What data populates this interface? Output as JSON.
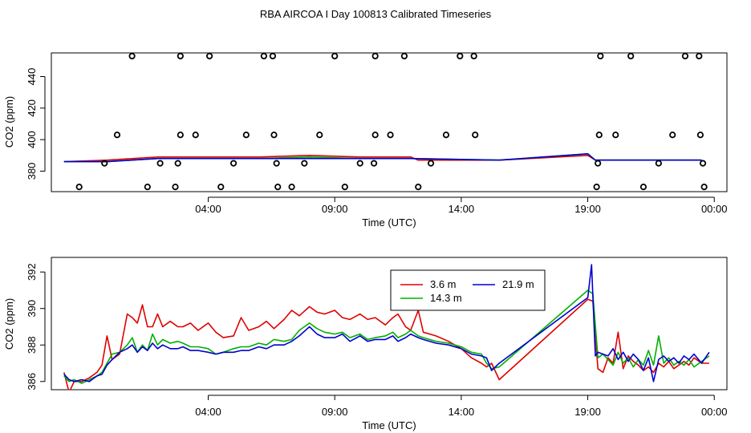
{
  "title": "RBA AIRCOA I  Day 100813  Calibrated Timeseries",
  "chart_data": [
    {
      "type": "line",
      "xlabel": "Time (UTC)",
      "ylabel": "CO2 (ppm)",
      "x_unit": "hours since 00:00 UTC",
      "xlim": [
        -2.2,
        24.5
      ],
      "ylim": [
        367,
        455
      ],
      "x_ticks": [
        {
          "x": 4,
          "label": "04:00"
        },
        {
          "x": 9,
          "label": "09:00"
        },
        {
          "x": 14,
          "label": "14:00"
        },
        {
          "x": 19,
          "label": "19:00"
        },
        {
          "x": 24,
          "label": "00:00"
        }
      ],
      "y_ticks": [
        380,
        400,
        420,
        440
      ],
      "scatter_points": [
        {
          "x": -1.1,
          "y": 370
        },
        {
          "x": -0.1,
          "y": 385
        },
        {
          "x": 0.4,
          "y": 403
        },
        {
          "x": 0.99,
          "y": 453
        },
        {
          "x": 1.6,
          "y": 370
        },
        {
          "x": 2.1,
          "y": 385
        },
        {
          "x": 2.7,
          "y": 370
        },
        {
          "x": 2.8,
          "y": 385
        },
        {
          "x": 2.9,
          "y": 403
        },
        {
          "x": 2.9,
          "y": 453
        },
        {
          "x": 3.5,
          "y": 403
        },
        {
          "x": 4.05,
          "y": 453
        },
        {
          "x": 4.5,
          "y": 370
        },
        {
          "x": 5.0,
          "y": 385
        },
        {
          "x": 5.5,
          "y": 403
        },
        {
          "x": 6.2,
          "y": 453
        },
        {
          "x": 6.55,
          "y": 453
        },
        {
          "x": 6.6,
          "y": 403
        },
        {
          "x": 6.7,
          "y": 385
        },
        {
          "x": 6.75,
          "y": 370
        },
        {
          "x": 7.3,
          "y": 370
        },
        {
          "x": 7.8,
          "y": 385
        },
        {
          "x": 8.4,
          "y": 403
        },
        {
          "x": 9.0,
          "y": 453
        },
        {
          "x": 9.4,
          "y": 370
        },
        {
          "x": 10.0,
          "y": 385
        },
        {
          "x": 10.55,
          "y": 385
        },
        {
          "x": 10.6,
          "y": 403
        },
        {
          "x": 10.6,
          "y": 453
        },
        {
          "x": 11.2,
          "y": 403
        },
        {
          "x": 11.75,
          "y": 453
        },
        {
          "x": 12.3,
          "y": 370
        },
        {
          "x": 12.8,
          "y": 385
        },
        {
          "x": 13.4,
          "y": 403
        },
        {
          "x": 13.95,
          "y": 453
        },
        {
          "x": 14.5,
          "y": 453
        },
        {
          "x": 14.55,
          "y": 403
        },
        {
          "x": 19.35,
          "y": 370
        },
        {
          "x": 19.4,
          "y": 385
        },
        {
          "x": 19.45,
          "y": 403
        },
        {
          "x": 19.5,
          "y": 453
        },
        {
          "x": 20.1,
          "y": 403
        },
        {
          "x": 20.7,
          "y": 453
        },
        {
          "x": 21.2,
          "y": 370
        },
        {
          "x": 21.8,
          "y": 385
        },
        {
          "x": 22.35,
          "y": 403
        },
        {
          "x": 22.85,
          "y": 453
        },
        {
          "x": 23.4,
          "y": 453
        },
        {
          "x": 23.45,
          "y": 403
        },
        {
          "x": 23.55,
          "y": 385
        },
        {
          "x": 23.6,
          "y": 370
        }
      ],
      "series": [
        {
          "name": "3.6 m",
          "color": "#e00000",
          "x": [
            -1.7,
            0.0,
            2.0,
            4.0,
            6.0,
            8.0,
            10.0,
            12.0,
            12.3,
            15.5,
            19.0,
            19.3,
            19.5,
            23.5
          ],
          "y": [
            386,
            387,
            389,
            389,
            389,
            390,
            389,
            389,
            387,
            387,
            390,
            387,
            387,
            387
          ]
        },
        {
          "name": "14.3 m",
          "color": "#00b000",
          "x": [
            -1.7,
            0.0,
            2.0,
            4.0,
            6.0,
            8.0,
            10.0,
            12.0,
            15.5,
            19.0,
            19.3,
            19.5,
            23.5
          ],
          "y": [
            386,
            386,
            388,
            388,
            388,
            389,
            388,
            388,
            387,
            391,
            387,
            387,
            387
          ]
        },
        {
          "name": "21.9 m",
          "color": "#0000d0",
          "x": [
            -1.7,
            0.0,
            2.0,
            4.0,
            6.0,
            8.0,
            10.0,
            12.0,
            15.5,
            19.0,
            19.3,
            19.5,
            23.5
          ],
          "y": [
            386,
            386,
            388,
            388,
            388,
            388,
            388,
            388,
            387,
            391,
            387,
            387,
            387
          ]
        }
      ]
    },
    {
      "type": "line",
      "xlabel": "Time (UTC)",
      "ylabel": "CO2 (ppm)",
      "x_unit": "hours since 00:00 UTC",
      "xlim": [
        -2.2,
        24.5
      ],
      "ylim": [
        385.55,
        392.8
      ],
      "x_ticks": [
        {
          "x": 4,
          "label": "04:00"
        },
        {
          "x": 9,
          "label": "09:00"
        },
        {
          "x": 14,
          "label": "14:00"
        },
        {
          "x": 19,
          "label": "19:00"
        },
        {
          "x": 24,
          "label": "00:00"
        }
      ],
      "y_ticks": [
        386,
        388,
        390,
        392
      ],
      "legend": {
        "position": "top-center"
      },
      "series": [
        {
          "name": "3.6 m",
          "color": "#e00000",
          "x": [
            -1.7,
            -1.5,
            -1.3,
            -1.0,
            -0.7,
            -0.4,
            -0.2,
            0.0,
            0.2,
            0.5,
            0.8,
            1.0,
            1.2,
            1.4,
            1.6,
            1.8,
            2.0,
            2.2,
            2.5,
            2.8,
            3.0,
            3.3,
            3.6,
            4.0,
            4.3,
            4.6,
            5.0,
            5.3,
            5.6,
            6.0,
            6.3,
            6.6,
            7.0,
            7.3,
            7.6,
            8.0,
            8.3,
            8.6,
            9.0,
            9.3,
            9.6,
            10.0,
            10.3,
            10.6,
            11.0,
            11.3,
            11.5,
            11.8,
            12.0,
            12.3,
            12.5,
            13.0,
            13.5,
            14.0,
            14.4,
            14.8,
            15.0,
            15.2,
            15.5,
            19.0,
            19.2,
            19.4,
            19.6,
            19.8,
            20.0,
            20.2,
            20.4,
            20.6,
            20.8,
            21.0,
            21.2,
            21.4,
            21.6,
            21.8,
            22.0,
            22.2,
            22.4,
            22.6,
            22.8,
            23.0,
            23.2,
            23.5,
            23.8
          ],
          "y": [
            386.5,
            385.4,
            386.0,
            386.0,
            386.2,
            386.5,
            386.9,
            388.5,
            387.2,
            387.5,
            389.7,
            389.5,
            389.2,
            390.2,
            389.0,
            389.0,
            389.7,
            389.0,
            389.3,
            389.0,
            389.0,
            389.2,
            388.8,
            389.2,
            388.7,
            388.4,
            388.5,
            389.5,
            388.8,
            389.0,
            389.3,
            388.9,
            389.4,
            389.9,
            389.6,
            390.1,
            389.8,
            389.7,
            389.9,
            389.5,
            389.4,
            389.7,
            389.4,
            389.5,
            389.1,
            389.5,
            389.7,
            389.0,
            388.8,
            389.9,
            388.7,
            388.5,
            388.2,
            387.8,
            387.3,
            387.0,
            386.8,
            387.0,
            386.1,
            390.5,
            390.4,
            386.7,
            386.5,
            387.3,
            387.0,
            388.7,
            386.7,
            387.4,
            387.1,
            386.9,
            386.6,
            386.8,
            386.5,
            387.0,
            386.8,
            387.1,
            386.7,
            386.9,
            387.1,
            386.9,
            387.3,
            387.0,
            387.0
          ]
        },
        {
          "name": "14.3 m",
          "color": "#00b000",
          "x": [
            -1.7,
            -1.5,
            -1.3,
            -1.0,
            -0.7,
            -0.4,
            -0.2,
            0.0,
            0.2,
            0.5,
            0.8,
            1.0,
            1.2,
            1.4,
            1.6,
            1.8,
            2.0,
            2.2,
            2.5,
            2.8,
            3.0,
            3.3,
            3.6,
            4.0,
            4.3,
            4.6,
            5.0,
            5.3,
            5.6,
            6.0,
            6.3,
            6.6,
            7.0,
            7.3,
            7.6,
            8.0,
            8.3,
            8.6,
            9.0,
            9.3,
            9.6,
            10.0,
            10.3,
            10.6,
            11.0,
            11.3,
            11.5,
            11.8,
            12.0,
            12.3,
            12.5,
            13.0,
            13.5,
            14.0,
            14.4,
            14.8,
            15.0,
            15.2,
            15.5,
            19.0,
            19.2,
            19.4,
            19.6,
            19.8,
            20.0,
            20.2,
            20.4,
            20.6,
            20.8,
            21.0,
            21.2,
            21.4,
            21.6,
            21.8,
            22.0,
            22.2,
            22.4,
            22.6,
            22.8,
            23.0,
            23.2,
            23.5,
            23.8
          ],
          "y": [
            386.3,
            386.0,
            386.1,
            385.9,
            386.1,
            386.3,
            386.5,
            387.0,
            387.5,
            387.6,
            388.0,
            388.4,
            387.6,
            388.0,
            387.7,
            388.6,
            388.0,
            388.3,
            388.1,
            388.2,
            388.1,
            387.9,
            387.9,
            387.8,
            387.5,
            387.6,
            387.8,
            387.9,
            387.9,
            388.1,
            388.0,
            388.3,
            388.2,
            388.3,
            388.8,
            389.2,
            388.9,
            388.7,
            388.6,
            388.7,
            388.4,
            388.6,
            388.3,
            388.4,
            388.5,
            388.7,
            388.4,
            388.6,
            388.8,
            388.5,
            388.4,
            388.2,
            388.1,
            387.9,
            387.6,
            387.5,
            387.0,
            386.7,
            386.8,
            391.0,
            390.8,
            387.3,
            387.5,
            387.2,
            386.9,
            387.6,
            387.0,
            387.3,
            386.8,
            387.2,
            386.9,
            387.7,
            386.9,
            388.5,
            387.0,
            387.3,
            386.9,
            387.1,
            386.9,
            387.2,
            386.8,
            387.1,
            387.4
          ]
        },
        {
          "name": "21.9 m",
          "color": "#0000d0",
          "x": [
            -1.7,
            -1.5,
            -1.3,
            -1.0,
            -0.7,
            -0.4,
            -0.2,
            0.0,
            0.2,
            0.5,
            0.8,
            1.0,
            1.2,
            1.4,
            1.6,
            1.8,
            2.0,
            2.2,
            2.5,
            2.8,
            3.0,
            3.3,
            3.6,
            4.0,
            4.3,
            4.6,
            5.0,
            5.3,
            5.6,
            6.0,
            6.3,
            6.6,
            7.0,
            7.3,
            7.6,
            8.0,
            8.3,
            8.6,
            9.0,
            9.3,
            9.6,
            10.0,
            10.3,
            10.6,
            11.0,
            11.3,
            11.5,
            11.8,
            12.0,
            12.3,
            12.5,
            13.0,
            13.5,
            14.0,
            14.4,
            14.8,
            15.0,
            15.2,
            15.5,
            19.0,
            19.15,
            19.3,
            19.4,
            19.6,
            19.8,
            20.0,
            20.2,
            20.4,
            20.6,
            20.8,
            21.0,
            21.2,
            21.4,
            21.6,
            21.8,
            22.0,
            22.2,
            22.4,
            22.6,
            22.8,
            23.0,
            23.2,
            23.5,
            23.8
          ],
          "y": [
            386.4,
            386.1,
            386.0,
            386.1,
            386.0,
            386.3,
            386.4,
            386.9,
            387.2,
            387.6,
            387.8,
            388.0,
            387.6,
            387.9,
            387.7,
            388.1,
            387.8,
            388.0,
            387.8,
            387.8,
            387.9,
            387.7,
            387.7,
            387.6,
            387.5,
            387.6,
            387.6,
            387.7,
            387.7,
            387.9,
            387.8,
            388.0,
            388.0,
            388.2,
            388.5,
            389.0,
            388.6,
            388.4,
            388.4,
            388.6,
            388.2,
            388.5,
            388.2,
            388.3,
            388.3,
            388.5,
            388.2,
            388.4,
            388.6,
            388.4,
            388.3,
            388.1,
            388.0,
            387.8,
            387.5,
            387.4,
            387.3,
            386.6,
            387.0,
            390.6,
            392.4,
            387.4,
            387.6,
            387.5,
            387.4,
            387.8,
            387.2,
            387.6,
            387.1,
            387.5,
            387.2,
            386.6,
            387.3,
            386.0,
            387.2,
            387.4,
            387.1,
            387.3,
            387.0,
            387.4,
            387.2,
            387.5,
            387.0,
            387.6
          ]
        }
      ]
    }
  ]
}
